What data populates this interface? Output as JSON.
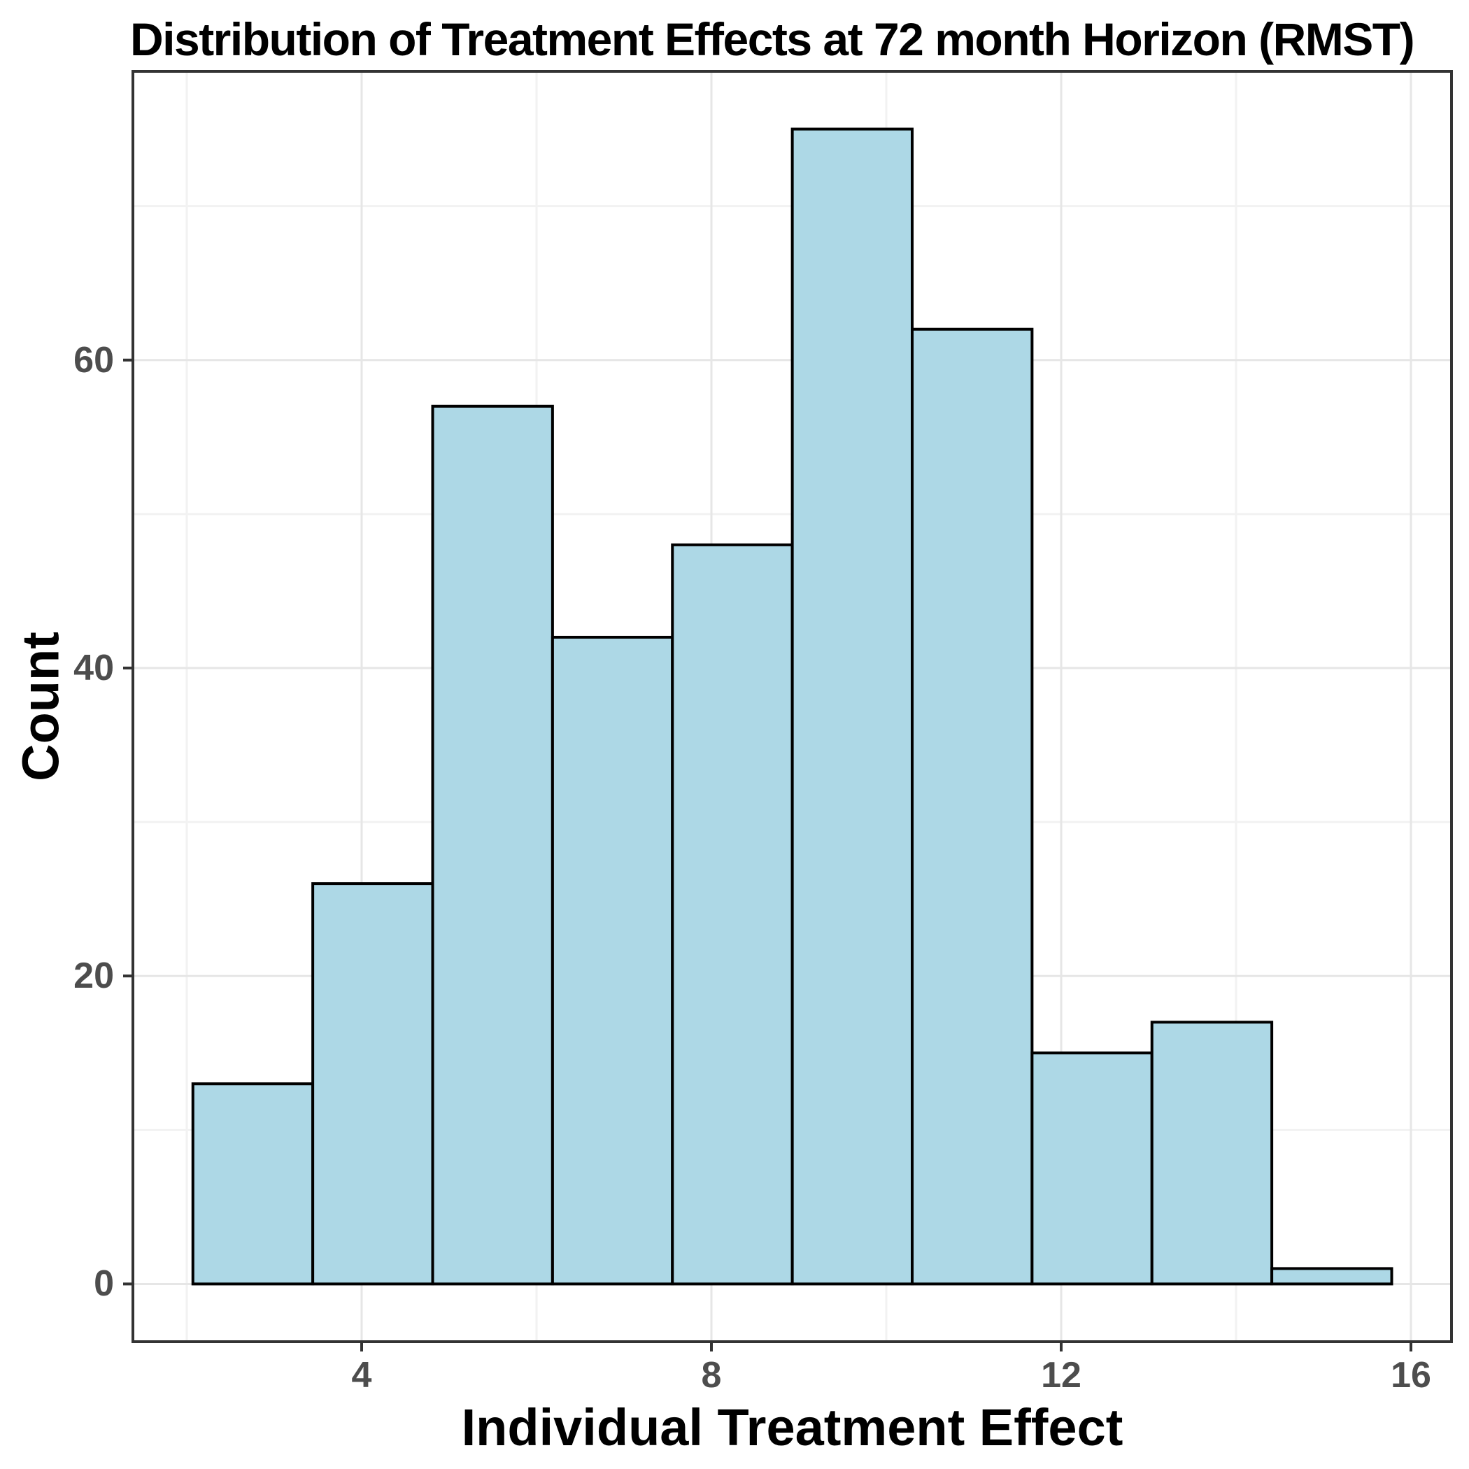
{
  "chart_data": {
    "type": "bar",
    "subtype": "histogram",
    "title": "Distribution of Treatment Effects at 72 month Horizon (RMST)",
    "xlabel": "Individual Treatment Effect",
    "ylabel": "Count",
    "bin_edges": [
      2.07,
      3.441,
      4.812,
      6.183,
      7.554,
      8.925,
      10.296,
      11.667,
      13.038,
      14.409,
      15.78
    ],
    "counts": [
      13,
      26,
      57,
      42,
      48,
      75,
      62,
      15,
      17,
      1
    ],
    "x_ticks": [
      4,
      8,
      12,
      16
    ],
    "x_tick_labels": [
      "4",
      "8",
      "12",
      "16"
    ],
    "y_ticks": [
      0,
      20,
      40,
      60
    ],
    "y_tick_labels": [
      "0",
      "20",
      "40",
      "60"
    ],
    "x_minor_gridlines": [
      2,
      6,
      10,
      14
    ],
    "y_minor_gridlines": [
      10,
      30,
      50,
      70
    ],
    "xlim": [
      1.384,
      16.464
    ],
    "ylim": [
      -3.75,
      78.75
    ],
    "grid": true,
    "legend_position": "none",
    "colors": {
      "bar_fill": "#ADD8E6",
      "bar_stroke": "#000000",
      "grid_major": "#E6E6E6",
      "grid_minor": "#F2F2F2",
      "panel_border": "#333333",
      "tick_mark": "#333333",
      "axis_text": "#4D4D4D",
      "title_text": "#000000",
      "background": "#FFFFFF"
    }
  }
}
